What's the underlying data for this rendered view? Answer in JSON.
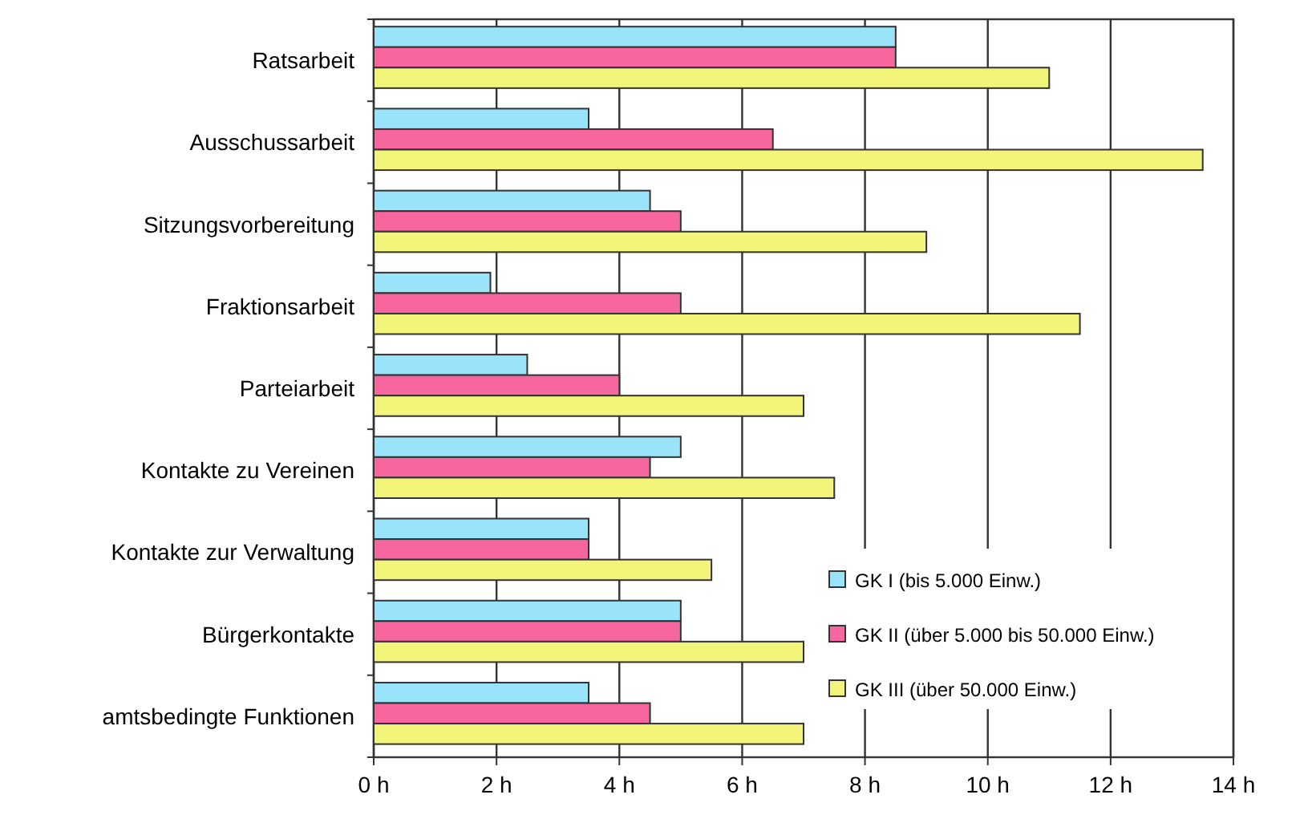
{
  "chart_data": {
    "type": "bar",
    "orientation": "horizontal",
    "categories": [
      "Ratsarbeit",
      "Ausschussarbeit",
      "Sitzungsvorbereitung",
      "Fraktionsarbeit",
      "Parteiarbeit",
      "Kontakte zu Vereinen",
      "Kontakte zur Verwaltung",
      "Bürgerkontakte",
      "amtsbedingte Funktionen"
    ],
    "series": [
      {
        "name": "GK I (bis 5.000 Einw.)",
        "color": "#99e4fa",
        "values": [
          8.5,
          3.5,
          4.5,
          1.9,
          2.5,
          5,
          3.5,
          5,
          3.5
        ]
      },
      {
        "name": "GK II (über 5.000 bis 50.000 Einw.)",
        "color": "#f7669e",
        "values": [
          8.5,
          6.5,
          5,
          5,
          4,
          4.5,
          3.5,
          5,
          4.5
        ]
      },
      {
        "name": "GK III (über 50.000 Einw.)",
        "color": "#f2f57a",
        "values": [
          11,
          13.5,
          9,
          11.5,
          7,
          7.5,
          5.5,
          7,
          7
        ]
      }
    ],
    "xlim": [
      0,
      14
    ],
    "xticks": [
      {
        "value": 0,
        "label": "0 h"
      },
      {
        "value": 2,
        "label": "2 h"
      },
      {
        "value": 4,
        "label": "4 h"
      },
      {
        "value": 6,
        "label": "6 h"
      },
      {
        "value": 8,
        "label": "8 h"
      },
      {
        "value": 10,
        "label": "10 h"
      },
      {
        "value": 12,
        "label": "12 h"
      },
      {
        "value": 14,
        "label": "14 h"
      }
    ],
    "grid": "x",
    "legend": "bottom right"
  }
}
